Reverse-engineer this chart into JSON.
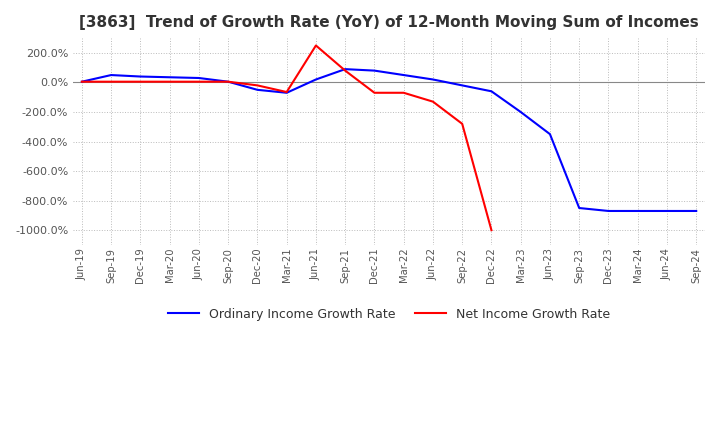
{
  "title": "[3863]  Trend of Growth Rate (YoY) of 12-Month Moving Sum of Incomes",
  "title_fontsize": 11,
  "ylim": [
    -1100,
    300
  ],
  "yticks": [
    200,
    0,
    -200,
    -400,
    -600,
    -800,
    -1000
  ],
  "background_color": "#ffffff",
  "grid_color": "#bbbbbb",
  "legend_labels": [
    "Ordinary Income Growth Rate",
    "Net Income Growth Rate"
  ],
  "legend_colors": [
    "#0000ff",
    "#ff0000"
  ],
  "x_labels": [
    "Jun-19",
    "Sep-19",
    "Dec-19",
    "Mar-20",
    "Jun-20",
    "Sep-20",
    "Dec-20",
    "Mar-21",
    "Jun-21",
    "Sep-21",
    "Dec-21",
    "Mar-22",
    "Jun-22",
    "Sep-22",
    "Dec-22",
    "Mar-23",
    "Jun-23",
    "Sep-23",
    "Dec-23",
    "Mar-24",
    "Jun-24",
    "Sep-24"
  ],
  "ordinary_income": [
    5.0,
    50.0,
    40.0,
    35.0,
    30.0,
    5.0,
    -50.0,
    -70.0,
    20.0,
    90.0,
    80.0,
    50.0,
    20.0,
    -20.0,
    -60.0,
    -200.0,
    -350.0,
    -850.0,
    -870.0,
    -870.0,
    -870.0,
    -870.0
  ],
  "net_income": [
    5.0,
    5.0,
    5.0,
    5.0,
    5.0,
    5.0,
    -20.0,
    -65.0,
    250.0,
    80.0,
    -70.0,
    -70.0,
    -130.0,
    -280.0,
    -1000.0,
    null,
    null,
    null,
    null,
    null,
    null,
    null
  ]
}
